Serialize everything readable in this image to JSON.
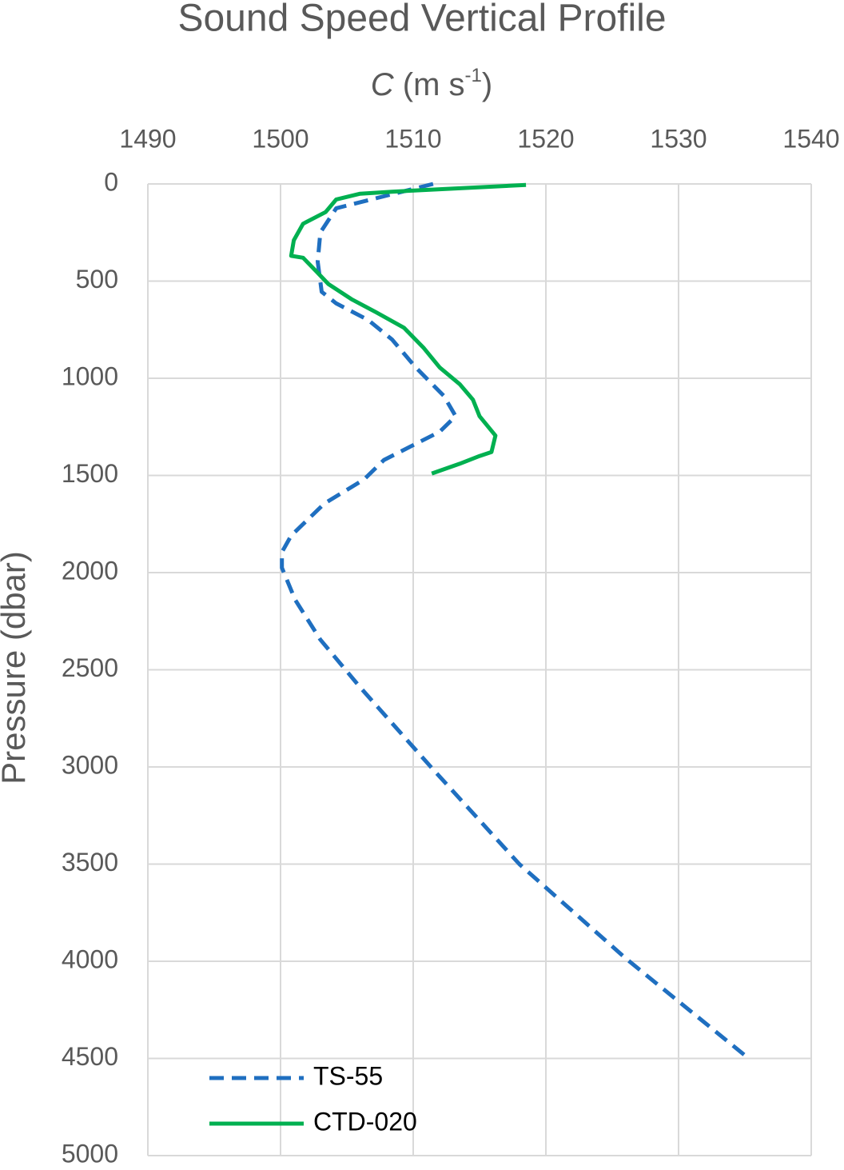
{
  "chart_data": {
    "type": "line",
    "title": "Sound Speed Vertical Profile",
    "x_label": {
      "symbol": "C",
      "unit": "(m s",
      "sup": "-1",
      "close": ")"
    },
    "y_label": "Pressure (dbar)",
    "xlim": [
      1490,
      1540
    ],
    "xticks": [
      1490,
      1500,
      1510,
      1520,
      1530,
      1540
    ],
    "ylim": [
      0,
      5000
    ],
    "yticks": [
      0,
      500,
      1000,
      1500,
      2000,
      2500,
      3000,
      3500,
      4000,
      4500,
      5000
    ],
    "y_inverted": true,
    "x_axis_top": true,
    "grid": true,
    "legend": "bottom-left",
    "series": [
      {
        "name": "TS-55",
        "color": "#1f6fc0",
        "dashed": true,
        "pressure": [
          0,
          125,
          250,
          400,
          555,
          615,
          700,
          800,
          945,
          1090,
          1195,
          1275,
          1420,
          1520,
          1645,
          1810,
          1895,
          1975,
          2140,
          2345,
          2590,
          3005,
          3500,
          3990,
          4495
        ],
        "values": [
          1511.5,
          1504.2,
          1503,
          1502.8,
          1503.1,
          1504.2,
          1506.6,
          1508.4,
          1510.2,
          1512.3,
          1513.2,
          1512,
          1507.8,
          1506.3,
          1503.3,
          1500.8,
          1500.1,
          1500.1,
          1501.1,
          1503,
          1506,
          1511.4,
          1518,
          1526.1,
          1535.2
        ]
      },
      {
        "name": "CTD-020",
        "color": "#00b050",
        "dashed": false,
        "pressure": [
          5,
          40,
          50,
          80,
          145,
          205,
          290,
          370,
          380,
          450,
          515,
          595,
          660,
          740,
          845,
          945,
          1030,
          1110,
          1195,
          1295,
          1380,
          1400,
          1440,
          1490
        ],
        "values": [
          1518.5,
          1508.4,
          1506,
          1504.2,
          1503.4,
          1501.7,
          1501,
          1500.8,
          1501.7,
          1502.7,
          1503.6,
          1505.4,
          1507.2,
          1509.3,
          1510.8,
          1512,
          1513.5,
          1514.5,
          1515,
          1516.2,
          1515.9,
          1515,
          1513.5,
          1511.4
        ]
      }
    ]
  }
}
